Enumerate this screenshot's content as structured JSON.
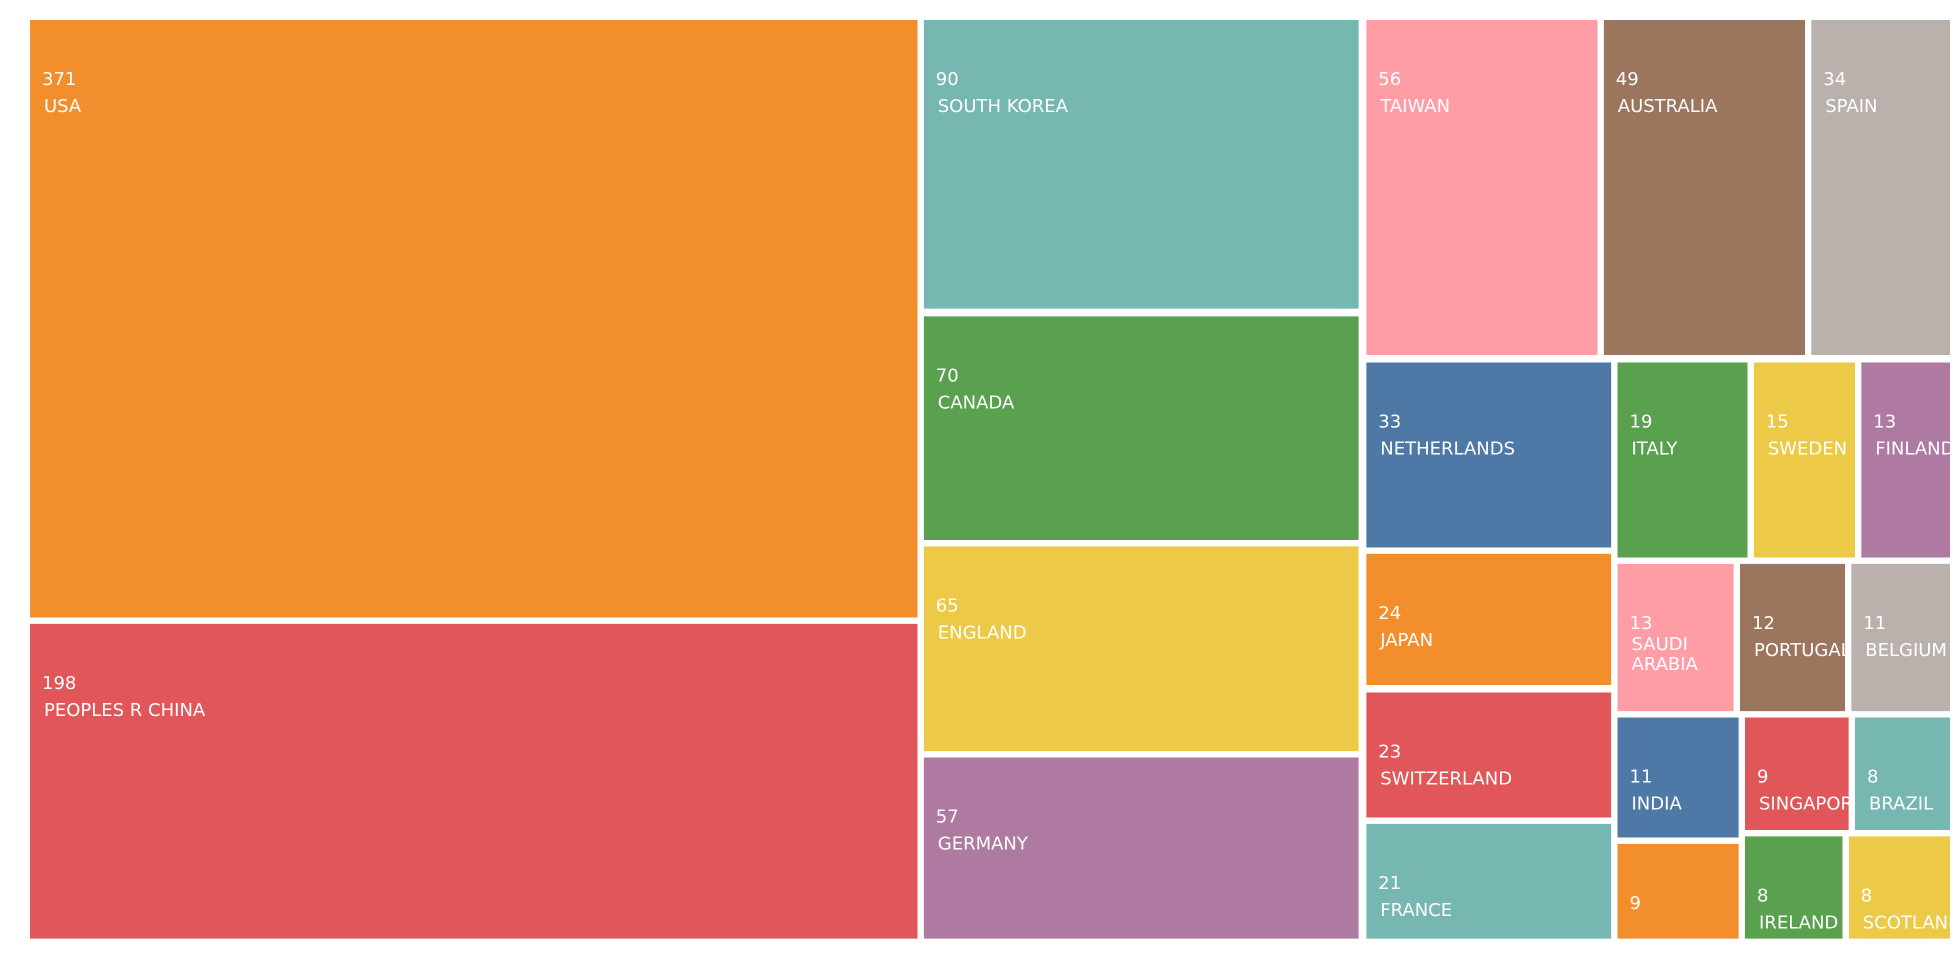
{
  "chart_data": {
    "type": "treemap",
    "categories": [
      "USA",
      "PEOPLES R CHINA",
      "SOUTH KOREA",
      "CANADA",
      "ENGLAND",
      "GERMANY",
      "TAIWAN",
      "AUSTRALIA",
      "SPAIN",
      "NETHERLANDS",
      "JAPAN",
      "SWITZERLAND",
      "FRANCE",
      "ITALY",
      "SWEDEN",
      "FINLAND",
      "SAUDI ARABIA",
      "PORTUGAL",
      "BELGIUM",
      "INDIA",
      "SINGAPORE",
      "BRAZIL",
      null,
      "IRELAND",
      "SCOTLAND"
    ],
    "values": [
      371,
      198,
      90,
      70,
      65,
      57,
      56,
      49,
      34,
      33,
      24,
      23,
      21,
      19,
      15,
      13,
      13,
      12,
      11,
      11,
      9,
      8,
      9,
      8,
      8
    ],
    "colors": [
      "#f28e2b",
      "#e15759",
      "#76b7b2",
      "#59a14f",
      "#edc948",
      "#af7aa1",
      "#ff9da7",
      "#9c755f",
      "#bab0ac",
      "#4e79a7",
      "#f28e2b",
      "#e15759",
      "#76b7b2",
      "#59a14f",
      "#edc948",
      "#af7aa1",
      "#ff9da7",
      "#9c755f",
      "#bab0ac",
      "#4e79a7",
      "#e15759",
      "#76b7b2",
      "#f28e2b",
      "#59a14f",
      "#edc948"
    ]
  }
}
